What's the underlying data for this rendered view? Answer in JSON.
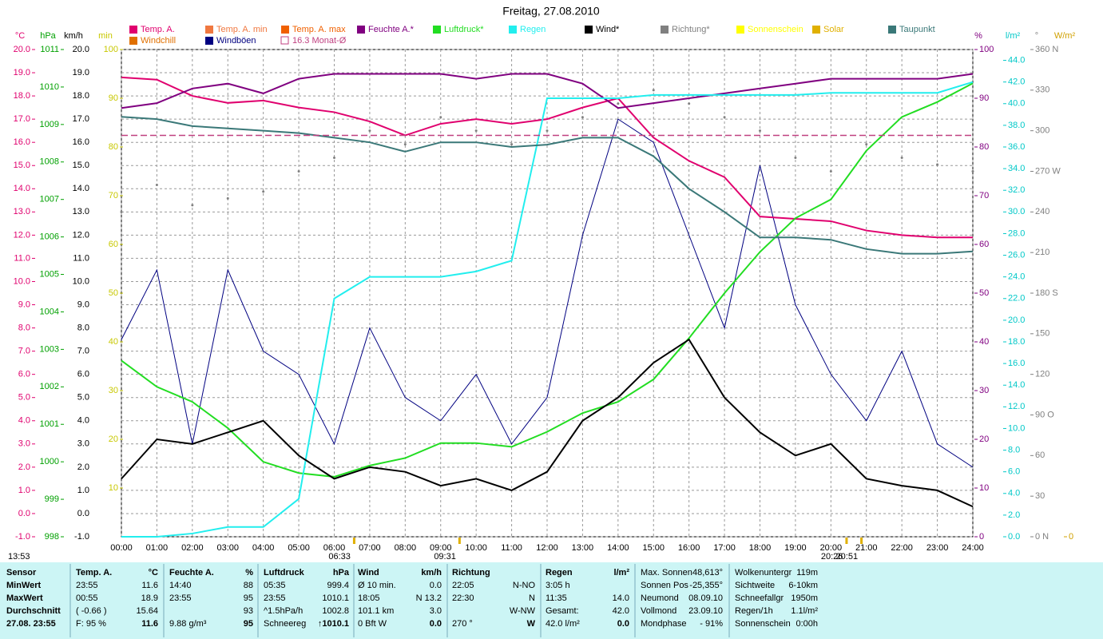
{
  "chart_data": {
    "type": "line",
    "title": "Freitag, 27.08.2010",
    "xlim": [
      0,
      24
    ],
    "x": [
      0,
      1,
      2,
      3,
      4,
      5,
      6,
      7,
      8,
      9,
      10,
      11,
      12,
      13,
      14,
      15,
      16,
      17,
      18,
      19,
      20,
      21,
      22,
      23,
      24
    ],
    "xticks": [
      {
        "value": 0,
        "label": "00:00"
      },
      {
        "value": 1,
        "label": "01:00"
      },
      {
        "value": 2,
        "label": "02:00"
      },
      {
        "value": 3,
        "label": "03:00"
      },
      {
        "value": 4,
        "label": "04:00"
      },
      {
        "value": 5,
        "label": "05:00"
      },
      {
        "value": 6,
        "label": "06:00"
      },
      {
        "value": 7,
        "label": "07:00"
      },
      {
        "value": 8,
        "label": "08:00"
      },
      {
        "value": 9,
        "label": "09:00"
      },
      {
        "value": 10,
        "label": "10:00"
      },
      {
        "value": 11,
        "label": "11:00"
      },
      {
        "value": 12,
        "label": "12:00"
      },
      {
        "value": 13,
        "label": "13:00"
      },
      {
        "value": 14,
        "label": "14:00"
      },
      {
        "value": 15,
        "label": "15:00"
      },
      {
        "value": 16,
        "label": "16:00"
      },
      {
        "value": 17,
        "label": "17:00"
      },
      {
        "value": 18,
        "label": "18:00"
      },
      {
        "value": 19,
        "label": "19:00"
      },
      {
        "value": 20,
        "label": "20:00"
      },
      {
        "value": 21,
        "label": "21:00"
      },
      {
        "value": 22,
        "label": "22:00"
      },
      {
        "value": 23,
        "label": "23:00"
      },
      {
        "value": 24,
        "label": "24:00"
      }
    ],
    "grid": true,
    "timestamp": "13:53",
    "annotations": [
      {
        "value": 6.55,
        "label": "06:33"
      },
      {
        "value": 9.52,
        "label": "09:31"
      },
      {
        "value": 20.43,
        "label": "20:26"
      },
      {
        "value": 20.85,
        "label": "20:51"
      }
    ],
    "axes": [
      {
        "label": "°C",
        "side": "left",
        "color": "#e0006e",
        "ylim": [
          -1,
          20
        ],
        "yticks": [
          {
            "value": -1,
            "label": "-1.0"
          },
          {
            "value": 0,
            "label": "0.0"
          },
          {
            "value": 1,
            "label": "1.0"
          },
          {
            "value": 2,
            "label": "2.0"
          },
          {
            "value": 3,
            "label": "3.0"
          },
          {
            "value": 4,
            "label": "4.0"
          },
          {
            "value": 5,
            "label": "5.0"
          },
          {
            "value": 6,
            "label": "6.0"
          },
          {
            "value": 7,
            "label": "7.0"
          },
          {
            "value": 8,
            "label": "8.0"
          },
          {
            "value": 9,
            "label": "9.0"
          },
          {
            "value": 10,
            "label": "10.0"
          },
          {
            "value": 11,
            "label": "11.0"
          },
          {
            "value": 12,
            "label": "12.0"
          },
          {
            "value": 13,
            "label": "13.0"
          },
          {
            "value": 14,
            "label": "14.0"
          },
          {
            "value": 15,
            "label": "15.0"
          },
          {
            "value": 16,
            "label": "16.0"
          },
          {
            "value": 17,
            "label": "17.0"
          },
          {
            "value": 18,
            "label": "18.0"
          },
          {
            "value": 19,
            "label": "19.0"
          },
          {
            "value": 20,
            "label": "20.0"
          }
        ]
      },
      {
        "label": "hPa",
        "side": "left",
        "color": "#00a000",
        "ylim": [
          998,
          1011
        ],
        "yticks": [
          998,
          999,
          1000,
          1001,
          1002,
          1003,
          1004,
          1005,
          1006,
          1007,
          1008,
          1009,
          1010,
          1011
        ]
      },
      {
        "label": "km/h",
        "side": "left",
        "color": "#000000",
        "ylim": [
          -1,
          20
        ],
        "yticks": [
          {
            "value": -1,
            "label": "-1.0"
          },
          {
            "value": 0,
            "label": "0.0"
          },
          {
            "value": 1,
            "label": "1.0"
          },
          {
            "value": 2,
            "label": "2.0"
          },
          {
            "value": 3,
            "label": "3.0"
          },
          {
            "value": 4,
            "label": "4.0"
          },
          {
            "value": 5,
            "label": "5.0"
          },
          {
            "value": 6,
            "label": "6.0"
          },
          {
            "value": 7,
            "label": "7.0"
          },
          {
            "value": 8,
            "label": "8.0"
          },
          {
            "value": 9,
            "label": "9.0"
          },
          {
            "value": 10,
            "label": "10.0"
          },
          {
            "value": 11,
            "label": "11.0"
          },
          {
            "value": 12,
            "label": "12.0"
          },
          {
            "value": 13,
            "label": "13.0"
          },
          {
            "value": 14,
            "label": "14.0"
          },
          {
            "value": 15,
            "label": "15.0"
          },
          {
            "value": 16,
            "label": "16.0"
          },
          {
            "value": 17,
            "label": "17.0"
          },
          {
            "value": 18,
            "label": "18.0"
          },
          {
            "value": 19,
            "label": "19.0"
          },
          {
            "value": 20,
            "label": "20.0"
          }
        ]
      },
      {
        "label": "min",
        "side": "left",
        "color": "#c8c800",
        "ylim": [
          0,
          100
        ],
        "yticks": [
          10,
          20,
          30,
          40,
          50,
          60,
          70,
          80,
          90,
          100
        ]
      },
      {
        "label": "%",
        "side": "right",
        "color": "#800080",
        "ylim": [
          0,
          100
        ],
        "yticks": [
          0,
          10,
          20,
          30,
          40,
          50,
          60,
          70,
          80,
          90,
          100
        ]
      },
      {
        "label": "l/m²",
        "side": "right",
        "color": "#00c8c8",
        "ylim": [
          0,
          45
        ],
        "yticks": [
          {
            "value": 0,
            "label": "0.0"
          },
          {
            "value": 2,
            "label": "2.0"
          },
          {
            "value": 4,
            "label": "4.0"
          },
          {
            "value": 6,
            "label": "6.0"
          },
          {
            "value": 8,
            "label": "8.0"
          },
          {
            "value": 10,
            "label": "10.0"
          },
          {
            "value": 12,
            "label": "12.0"
          },
          {
            "value": 14,
            "label": "14.0"
          },
          {
            "value": 16,
            "label": "16.0"
          },
          {
            "value": 18,
            "label": "18.0"
          },
          {
            "value": 20,
            "label": "20.0"
          },
          {
            "value": 22,
            "label": "22.0"
          },
          {
            "value": 24,
            "label": "24.0"
          },
          {
            "value": 26,
            "label": "26.0"
          },
          {
            "value": 28,
            "label": "28.0"
          },
          {
            "value": 30,
            "label": "30.0"
          },
          {
            "value": 32,
            "label": "32.0"
          },
          {
            "value": 34,
            "label": "34.0"
          },
          {
            "value": 36,
            "label": "36.0"
          },
          {
            "value": 38,
            "label": "38.0"
          },
          {
            "value": 40,
            "label": "40.0"
          },
          {
            "value": 42,
            "label": "42.0"
          },
          {
            "value": 44,
            "label": "44.0"
          }
        ]
      },
      {
        "label": "°",
        "side": "right",
        "color": "#808080",
        "ylim": [
          0,
          360
        ],
        "yticks": [
          {
            "value": 0,
            "label": "0 N"
          },
          30,
          60,
          {
            "value": 90,
            "label": "90 O"
          },
          120,
          150,
          {
            "value": 180,
            "label": "180 S"
          },
          210,
          240,
          {
            "value": 270,
            "label": "270 W"
          },
          300,
          330,
          {
            "value": 360,
            "label": "360 N"
          }
        ]
      },
      {
        "label": "W/m²",
        "side": "right",
        "color": "#d0a000",
        "yticks": [
          0
        ]
      }
    ],
    "series": [
      {
        "name": "Temp. A.",
        "color": "#e0006e",
        "axis": "°C",
        "values": [
          18.8,
          18.7,
          18.0,
          17.7,
          17.8,
          17.5,
          17.3,
          16.9,
          16.3,
          16.8,
          17.0,
          16.8,
          17.0,
          17.5,
          17.9,
          16.2,
          15.2,
          14.5,
          12.8,
          12.7,
          12.6,
          12.2,
          12.0,
          11.9,
          11.9
        ]
      },
      {
        "name": "Temp. A. min",
        "color": "#f07840"
      },
      {
        "name": "Temp. A. max",
        "color": "#f06000"
      },
      {
        "name": "Feuchte A.*",
        "color": "#800080",
        "axis": "%",
        "values": [
          88,
          89,
          92,
          93,
          91,
          94,
          95,
          95,
          95,
          95,
          94,
          95,
          95,
          93,
          88,
          89,
          90,
          91,
          92,
          93,
          94,
          94,
          94,
          94,
          95
        ]
      },
      {
        "name": "Luftdruck*",
        "color": "#22dd22",
        "axis": "hPa",
        "values": [
          1002.7,
          1002.0,
          1001.6,
          1000.9,
          1000.0,
          999.7,
          999.6,
          999.9,
          1000.1,
          1000.5,
          1000.5,
          1000.4,
          1000.8,
          1001.3,
          1001.6,
          1002.2,
          1003.3,
          1004.5,
          1005.6,
          1006.5,
          1007.0,
          1008.3,
          1009.2,
          1009.6,
          1010.1
        ]
      },
      {
        "name": "Regen",
        "color": "#22eeee",
        "axis": "l/m²",
        "values": [
          0,
          0,
          0.3,
          0.9,
          0.9,
          3.5,
          22,
          24,
          24,
          24,
          24.5,
          25.5,
          40.5,
          40.5,
          40.5,
          40.8,
          40.8,
          40.8,
          40.8,
          40.8,
          41.0,
          41.0,
          41.0,
          41.0,
          42.0
        ]
      },
      {
        "name": "Wind*",
        "color": "#000000",
        "axis": "km/h",
        "values": [
          1.5,
          3.2,
          3.0,
          3.5,
          4.0,
          2.5,
          1.5,
          2.0,
          1.8,
          1.2,
          1.5,
          1.0,
          1.8,
          4.0,
          5.0,
          6.5,
          7.5,
          5.0,
          3.5,
          2.5,
          3.0,
          1.5,
          1.2,
          1.0,
          0.3
        ]
      },
      {
        "name": "Richtung*",
        "color": "#808080",
        "axis": "°",
        "style": "points",
        "values": [
          240,
          260,
          245,
          250,
          255,
          270,
          280,
          300,
          290,
          310,
          300,
          290,
          300,
          310,
          320,
          330,
          320,
          310,
          300,
          280,
          270,
          290,
          280,
          275,
          270
        ]
      },
      {
        "name": "Sonnenschein",
        "color": "#ffff00"
      },
      {
        "name": "Solar",
        "color": "#e0b000"
      },
      {
        "name": "Taupunkt",
        "color": "#3a7878",
        "axis": "°C",
        "values": [
          17.1,
          17.0,
          16.7,
          16.6,
          16.5,
          16.4,
          16.2,
          16.0,
          15.6,
          16.0,
          16.0,
          15.8,
          15.9,
          16.2,
          16.2,
          15.4,
          14.0,
          13.0,
          11.9,
          11.9,
          11.8,
          11.4,
          11.2,
          11.2,
          11.3
        ]
      },
      {
        "name": "Windchill",
        "color": "#e07000"
      },
      {
        "name": "Windböen",
        "color": "#000080",
        "axis": "km/h",
        "values": [
          7.5,
          10.5,
          3.0,
          10.5,
          7.0,
          6.0,
          3.0,
          8.0,
          5.0,
          4.0,
          6.0,
          3.0,
          5.0,
          12.0,
          17.0,
          16.0,
          12.0,
          8.0,
          15.0,
          9.0,
          6.0,
          4.0,
          7.0,
          3.0,
          2.0
        ]
      },
      {
        "name": "16.3 Monat-Ø",
        "color": "#c04080",
        "axis": "°C",
        "style": "dashed",
        "value": 16.3
      }
    ]
  },
  "stats": {
    "blocks": [
      {
        "title": "Sensor",
        "rows": [
          [
            "MinWert"
          ],
          [
            "MaxWert"
          ],
          [
            "Durchschnitt"
          ],
          [
            "27.08. 23:55"
          ]
        ]
      },
      {
        "title": "Temp. A.",
        "unit": "°C",
        "rows": [
          [
            "23:55",
            "11.6"
          ],
          [
            "00:55",
            "18.9"
          ],
          [
            "( -0.66 )",
            "15.64"
          ],
          [
            "F: 95 %",
            "11.6"
          ]
        ]
      },
      {
        "title": "Feuchte A.",
        "unit": "%",
        "rows": [
          [
            "14:40",
            "88"
          ],
          [
            "23:55",
            "95"
          ],
          [
            null,
            "93"
          ],
          [
            "9.88 g/m³",
            "95"
          ]
        ]
      },
      {
        "title": "Luftdruck",
        "unit": "hPa",
        "rows": [
          [
            "05:35",
            "999.4"
          ],
          [
            "23:55",
            "1010.1"
          ],
          [
            "^1.5hPa/h",
            "1002.8"
          ],
          [
            "Schneereg",
            "↑1010.1"
          ]
        ]
      },
      {
        "title": "Wind",
        "unit": "km/h",
        "rows": [
          [
            "Ø 10 min.",
            "0.0"
          ],
          [
            "18:05",
            "N 13.2"
          ],
          [
            "101.1 km",
            "3.0"
          ],
          [
            "0 Bft W",
            "0.0"
          ]
        ]
      },
      {
        "title": "Richtung",
        "rows": [
          [
            "22:05",
            "N-NO"
          ],
          [
            "22:30",
            "N"
          ],
          [
            null,
            "W-NW"
          ],
          [
            "270 °",
            "W"
          ]
        ]
      },
      {
        "title": "Regen",
        "unit": "l/m²",
        "rows": [
          [
            "3:05 h",
            null
          ],
          [
            "11:35",
            "14.0"
          ],
          [
            "Gesamt:",
            "42.0"
          ],
          [
            "42.0 l/m²",
            "0.0"
          ]
        ]
      },
      {
        "rows": [
          [
            "Max. Sonnen",
            "48,613°"
          ],
          [
            "Sonnen Pos",
            "-25,355°"
          ],
          [
            "Neumond",
            "08.09.10"
          ],
          [
            "Vollmond",
            "23.09.10"
          ],
          [
            "Mondphase",
            "- 91%"
          ]
        ]
      },
      {
        "rows": [
          [
            "Wolkenuntergr",
            "119m"
          ],
          [
            "Sichtweite",
            "6-10km"
          ],
          [
            "Schneefallgr",
            "1950m"
          ],
          [
            "Regen/1h",
            "1.1l/m²"
          ],
          [
            "Sonnenschein",
            "0:00h"
          ]
        ]
      }
    ]
  }
}
